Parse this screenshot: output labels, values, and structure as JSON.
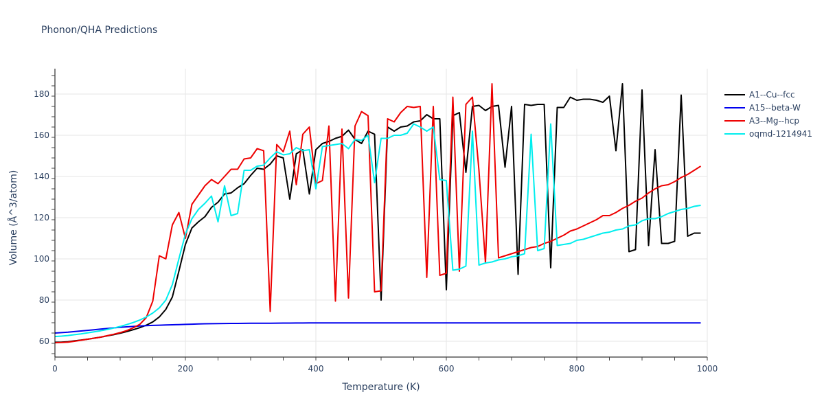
{
  "chart_data": {
    "type": "line",
    "title": "Phonon/QHA Predictions",
    "xlabel": "Temperature (K)",
    "ylabel": "Volume (Å^3/atom)",
    "xlim": [
      0,
      1000
    ],
    "ylim": [
      52,
      192
    ],
    "xticks": [
      0,
      200,
      400,
      600,
      800,
      1000
    ],
    "yticks": [
      60,
      80,
      100,
      120,
      140,
      160,
      180
    ],
    "grid": true,
    "legend_position": "right",
    "x": [
      0,
      10,
      20,
      30,
      40,
      50,
      60,
      70,
      80,
      90,
      100,
      110,
      120,
      130,
      140,
      150,
      160,
      170,
      180,
      190,
      200,
      210,
      220,
      230,
      240,
      250,
      260,
      270,
      280,
      290,
      300,
      310,
      320,
      330,
      340,
      350,
      360,
      370,
      380,
      390,
      400,
      410,
      420,
      430,
      440,
      450,
      460,
      470,
      480,
      490,
      500,
      510,
      520,
      530,
      540,
      550,
      560,
      570,
      580,
      590,
      600,
      610,
      620,
      630,
      640,
      650,
      660,
      670,
      680,
      690,
      700,
      710,
      720,
      730,
      740,
      750,
      760,
      770,
      780,
      790,
      800,
      810,
      820,
      830,
      840,
      850,
      860,
      870,
      880,
      890,
      900,
      910,
      920,
      930,
      940,
      950,
      960,
      970,
      980,
      990
    ],
    "series": [
      {
        "name": "A1--Cu--fcc",
        "color": "#000000",
        "values": [
          59.5,
          59.6,
          59.8,
          60.2,
          60.6,
          61.0,
          61.5,
          62.0,
          62.6,
          63.2,
          63.9,
          64.7,
          65.6,
          66.6,
          67.8,
          69.4,
          71.8,
          75.5,
          81.5,
          94,
          107,
          115,
          118,
          120.5,
          125,
          127.5,
          131.5,
          132,
          134.5,
          136.5,
          140.5,
          144,
          143.5,
          146,
          150,
          149,
          129,
          151,
          153,
          131.5,
          153,
          156,
          157,
          158.5,
          159.5,
          162.5,
          158,
          156,
          162,
          160.5,
          80,
          164,
          162,
          164,
          164.5,
          166.5,
          167,
          170,
          168,
          168,
          85,
          169.5,
          171,
          142,
          174,
          174.5,
          172,
          174,
          174.5,
          144.5,
          174,
          92.5,
          175,
          174.5,
          175,
          175,
          95.7,
          173.5,
          173.5,
          178.5,
          177,
          177.5,
          177.5,
          177,
          176,
          179,
          152.5,
          185,
          103.5,
          104.5,
          182,
          106.5,
          153,
          107.5,
          107.5,
          108.5,
          179.5,
          111,
          112.5,
          112.5
        ]
      },
      {
        "name": "A15--beta-W",
        "color": "#0000ee",
        "values": [
          64.0,
          64.2,
          64.4,
          64.7,
          65.0,
          65.3,
          65.6,
          65.9,
          66.2,
          66.5,
          66.8,
          67.0,
          67.2,
          67.4,
          67.6,
          67.7,
          67.8,
          67.9,
          68.0,
          68.1,
          68.2,
          68.3,
          68.4,
          68.5,
          68.55,
          68.6,
          68.62,
          68.65,
          68.68,
          68.7,
          68.72,
          68.74,
          68.76,
          68.78,
          68.8,
          68.82,
          68.84,
          68.86,
          68.88,
          68.9,
          68.9,
          68.9,
          68.9,
          68.9,
          68.9,
          68.9,
          68.9,
          68.9,
          68.9,
          68.9,
          68.9,
          68.9,
          68.9,
          68.9,
          68.9,
          68.9,
          68.9,
          68.9,
          68.9,
          68.9,
          68.9,
          68.9,
          68.9,
          68.9,
          68.9,
          68.9,
          68.9,
          68.9,
          68.9,
          68.9,
          68.9,
          68.9,
          68.9,
          68.9,
          68.9,
          68.9,
          68.9,
          68.9,
          68.9,
          68.9,
          68.9,
          68.9,
          68.9,
          68.9,
          68.9,
          68.9,
          68.9,
          68.9,
          68.9,
          68.9,
          68.9,
          68.9,
          68.9,
          68.9,
          68.9,
          68.9,
          68.9,
          68.9,
          68.9,
          68.9
        ]
      },
      {
        "name": "A3--Mg--hcp",
        "color": "#ee0000",
        "values": [
          59.3,
          59.4,
          59.6,
          60.0,
          60.5,
          61.0,
          61.5,
          62.0,
          62.7,
          63.4,
          64.2,
          65.2,
          66.5,
          68.2,
          71.5,
          79.5,
          101.5,
          100,
          116.5,
          122.5,
          110,
          126.5,
          131,
          135.5,
          138.5,
          136.5,
          140,
          143.5,
          143.5,
          148.5,
          149,
          153.5,
          152.5,
          74.5,
          155.5,
          152,
          162,
          136,
          160.5,
          164,
          136.5,
          138,
          164.5,
          79.5,
          163,
          81,
          164.5,
          171.5,
          169.5,
          84,
          84.5,
          168,
          166.5,
          171,
          174,
          173.5,
          174,
          91,
          174,
          92,
          93,
          178.5,
          94,
          175,
          178.5,
          143,
          98,
          185,
          100.5,
          101.5,
          102.5,
          103.5,
          104.5,
          105.5,
          106,
          107.5,
          108.5,
          110,
          111.5,
          113.5,
          114.5,
          116,
          117.5,
          119,
          121,
          121,
          122.5,
          124.5,
          126,
          128,
          129.5,
          132,
          134,
          135.5,
          136,
          137.5,
          139.5,
          141,
          143,
          145
        ]
      },
      {
        "name": "oqmd-1214941",
        "color": "#00eeee",
        "values": [
          62.3,
          62.5,
          62.8,
          63.2,
          63.6,
          64.1,
          64.6,
          65.1,
          65.7,
          66.4,
          67.2,
          68.1,
          69.1,
          70.3,
          71.8,
          73.7,
          76.2,
          80,
          87.5,
          100,
          112,
          119.5,
          124,
          127,
          130.5,
          118,
          135.5,
          121,
          122,
          143,
          143,
          145,
          145.5,
          149,
          152,
          150.5,
          151,
          154,
          152.5,
          153,
          134,
          154.5,
          155,
          155.5,
          156,
          153.5,
          158,
          157.5,
          160,
          137,
          158.5,
          158.5,
          160,
          160,
          161,
          165.5,
          164,
          162,
          164,
          138.5,
          138,
          94.5,
          95,
          96.5,
          162,
          97,
          98,
          98.5,
          99.5,
          100,
          101,
          101.5,
          102.5,
          160.5,
          104,
          105,
          165.5,
          106.5,
          107,
          107.5,
          109,
          109.5,
          110.5,
          111.5,
          112.5,
          113,
          114,
          114.5,
          116,
          116.5,
          118.5,
          119.5,
          119.5,
          120.5,
          122,
          123,
          124,
          124.5,
          125.5,
          126
        ]
      }
    ]
  },
  "legend": {
    "items": [
      {
        "label": "A1--Cu--fcc"
      },
      {
        "label": "A15--beta-W"
      },
      {
        "label": "A3--Mg--hcp"
      },
      {
        "label": "oqmd-1214941"
      }
    ]
  }
}
